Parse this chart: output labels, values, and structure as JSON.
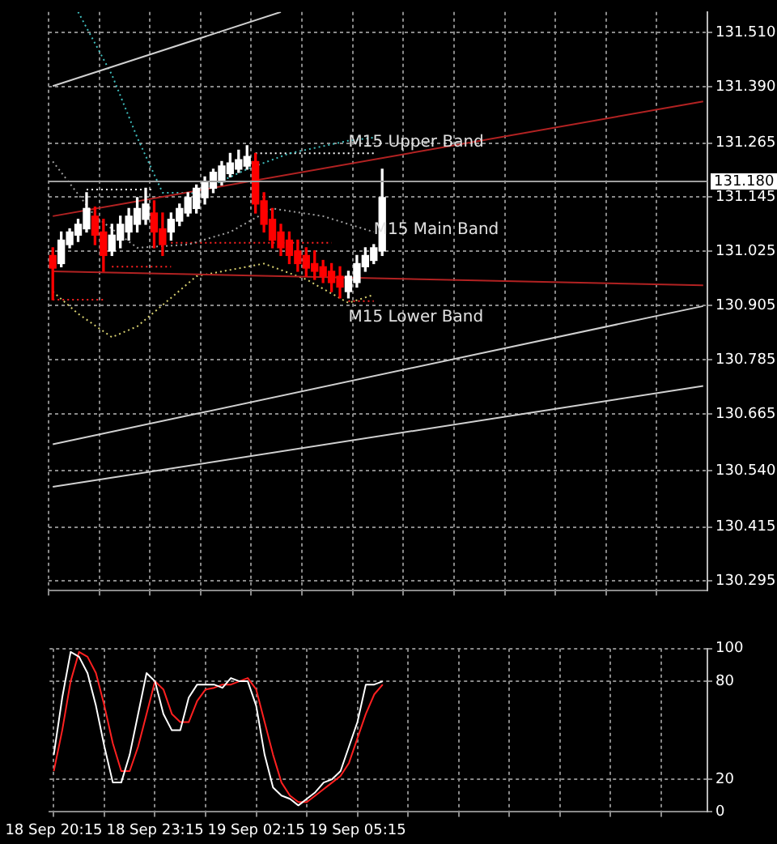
{
  "chart_data": [
    {
      "type": "candlestick",
      "tick_labels": "y",
      "grid": true,
      "categories": [
        null,
        null,
        null,
        null,
        null,
        null,
        null,
        null,
        null,
        null,
        null,
        null,
        null,
        null,
        null,
        null,
        null,
        null,
        null,
        null,
        null,
        null,
        null,
        null,
        null,
        null,
        null,
        null,
        null,
        null,
        null,
        null,
        null,
        null,
        null,
        null,
        null,
        null,
        null,
        null,
        null,
        null,
        null,
        null,
        null,
        null,
        null,
        null,
        null,
        null,
        null,
        null,
        null,
        null,
        null,
        null,
        null,
        null,
        null,
        null,
        null,
        null,
        null,
        null,
        null,
        null,
        null,
        null,
        null,
        null,
        null,
        null,
        null,
        null,
        null,
        null,
        null,
        null
      ],
      "ohlc": [
        [
          131.016,
          131.033,
          130.918,
          130.988
        ],
        [
          130.998,
          131.068,
          130.991,
          131.05
        ],
        [
          131.04,
          131.075,
          131.033,
          131.068
        ],
        [
          131.061,
          131.096,
          131.047,
          131.085
        ],
        [
          131.075,
          131.155,
          131.068,
          131.12
        ],
        [
          131.103,
          131.123,
          131.04,
          131.061
        ],
        [
          131.068,
          131.096,
          130.981,
          131.016
        ],
        [
          131.026,
          131.085,
          131.016,
          131.061
        ],
        [
          131.05,
          131.103,
          131.033,
          131.085
        ],
        [
          131.068,
          131.12,
          131.05,
          131.103
        ],
        [
          131.085,
          131.144,
          131.068,
          131.12
        ],
        [
          131.096,
          131.165,
          131.085,
          131.13
        ],
        [
          131.11,
          131.137,
          131.033,
          131.068
        ],
        [
          131.075,
          131.11,
          131.016,
          131.04
        ],
        [
          131.068,
          131.11,
          131.05,
          131.096
        ],
        [
          131.092,
          131.13,
          131.082,
          131.12
        ],
        [
          131.11,
          131.155,
          131.103,
          131.144
        ],
        [
          131.12,
          131.172,
          131.11,
          131.165
        ],
        [
          131.144,
          131.19,
          131.13,
          131.179
        ],
        [
          131.165,
          131.207,
          131.155,
          131.2
        ],
        [
          131.179,
          131.224,
          131.172,
          131.214
        ],
        [
          131.197,
          131.242,
          131.19,
          131.221
        ],
        [
          131.207,
          131.249,
          131.2,
          131.228
        ],
        [
          131.214,
          131.259,
          131.207,
          131.235
        ],
        [
          131.224,
          131.242,
          131.11,
          131.13
        ],
        [
          131.137,
          131.155,
          131.068,
          131.085
        ],
        [
          131.096,
          131.12,
          131.033,
          131.05
        ],
        [
          131.068,
          131.085,
          131.016,
          131.033
        ],
        [
          131.05,
          131.068,
          130.998,
          131.016
        ],
        [
          131.026,
          131.05,
          130.981,
          130.998
        ],
        [
          131.016,
          131.033,
          130.97,
          130.988
        ],
        [
          130.998,
          131.026,
          130.963,
          130.981
        ],
        [
          130.991,
          131.005,
          130.956,
          130.97
        ],
        [
          130.981,
          130.998,
          130.936,
          130.956
        ],
        [
          130.97,
          130.991,
          130.922,
          130.946
        ],
        [
          130.936,
          130.981,
          130.922,
          130.97
        ],
        [
          130.956,
          131.016,
          130.946,
          130.998
        ],
        [
          130.991,
          131.033,
          130.981,
          131.016
        ],
        [
          131.005,
          131.04,
          130.998,
          131.033
        ],
        [
          131.026,
          131.207,
          131.016,
          131.144
        ],
        null,
        null,
        null,
        null,
        null,
        null,
        null,
        null,
        null,
        null,
        null,
        null,
        null,
        null,
        null,
        null,
        null,
        null,
        null,
        null,
        null,
        null,
        null,
        null,
        null,
        null,
        null,
        null,
        null,
        null,
        null,
        null,
        null,
        null,
        null,
        null,
        null,
        null
      ],
      "colors": [
        "#ff0000",
        "#ffffff",
        "#ffffff",
        "#ffffff",
        "#ffffff",
        "#ff0000",
        "#ff0000",
        "#ffffff",
        "#ffffff",
        "#ffffff",
        "#ffffff",
        "#ffffff",
        "#ff0000",
        "#ff0000",
        "#ffffff",
        "#ffffff",
        "#ffffff",
        "#ffffff",
        "#ffffff",
        "#ffffff",
        "#ffffff",
        "#ffffff",
        "#ffffff",
        "#ffffff",
        "#ff0000",
        "#ff0000",
        "#ff0000",
        "#ff0000",
        "#ff0000",
        "#ff0000",
        "#ff0000",
        "#ff0000",
        "#ff0000",
        "#ff0000",
        "#ff0000",
        "#ffffff",
        "#ffffff",
        "#ffffff",
        "#ffffff",
        "#ffffff",
        null,
        null,
        null,
        null,
        null,
        null,
        null,
        null,
        null,
        null,
        null,
        null,
        null,
        null,
        null,
        null,
        null,
        null,
        null,
        null,
        null,
        null,
        null,
        null,
        null,
        null,
        null,
        null,
        null,
        null,
        null,
        null,
        null,
        null,
        null,
        null,
        null,
        null
      ],
      "series": [
        {
          "type": "line",
          "color": "#b22222",
          "line_style": "solid",
          "values": [
            131.103,
            null,
            null,
            null,
            null,
            null,
            null,
            null,
            null,
            null,
            null,
            null,
            null,
            null,
            null,
            null,
            null,
            null,
            null,
            null,
            null,
            null,
            null,
            null,
            null,
            null,
            null,
            null,
            null,
            null,
            null,
            null,
            null,
            null,
            null,
            null,
            null,
            null,
            null,
            null,
            null,
            null,
            null,
            null,
            null,
            null,
            null,
            null,
            null,
            null,
            null,
            null,
            null,
            null,
            null,
            null,
            null,
            null,
            null,
            null,
            null,
            null,
            null,
            null,
            null,
            null,
            null,
            null,
            null,
            null,
            null,
            null,
            null,
            null,
            null,
            null,
            null,
            131.357
          ]
        },
        {
          "type": "line",
          "color": "#b22222",
          "line_style": "solid",
          "values": [
            130.981,
            null,
            null,
            null,
            null,
            null,
            null,
            null,
            null,
            null,
            null,
            null,
            null,
            null,
            null,
            null,
            null,
            null,
            null,
            null,
            null,
            null,
            null,
            null,
            null,
            null,
            null,
            null,
            null,
            null,
            null,
            null,
            null,
            null,
            null,
            null,
            null,
            null,
            null,
            null,
            null,
            null,
            null,
            null,
            null,
            null,
            null,
            null,
            null,
            null,
            null,
            null,
            null,
            null,
            null,
            null,
            null,
            null,
            null,
            null,
            null,
            null,
            null,
            null,
            null,
            null,
            null,
            null,
            null,
            null,
            null,
            null,
            null,
            null,
            null,
            null,
            null,
            130.95
          ]
        },
        {
          "type": "line",
          "color": "#d0d0d0",
          "line_style": "solid",
          "values": [
            131.391,
            null,
            null,
            null,
            null,
            null,
            null,
            null,
            null,
            null,
            null,
            null,
            null,
            null,
            null,
            null,
            null,
            null,
            null,
            null,
            null,
            null,
            null,
            null,
            null,
            null,
            null,
            131.555,
            null,
            null,
            null,
            null,
            null,
            null,
            null,
            null,
            null,
            null,
            null,
            null,
            null,
            null,
            null,
            null,
            null,
            null,
            null,
            null,
            null,
            null,
            null,
            null,
            null,
            null,
            null,
            null,
            null,
            null,
            null,
            null,
            null,
            null,
            null,
            null,
            null,
            null,
            null,
            null,
            null,
            null,
            null,
            null,
            null,
            null,
            null,
            null,
            null,
            null
          ]
        },
        {
          "type": "line",
          "color": "#d0d0d0",
          "line_style": "solid",
          "values": [
            130.598,
            null,
            null,
            null,
            null,
            null,
            null,
            null,
            null,
            null,
            null,
            null,
            null,
            null,
            null,
            null,
            null,
            null,
            null,
            null,
            null,
            null,
            null,
            null,
            null,
            null,
            null,
            null,
            null,
            null,
            null,
            null,
            null,
            null,
            null,
            null,
            null,
            null,
            null,
            null,
            null,
            null,
            null,
            null,
            null,
            null,
            null,
            null,
            null,
            null,
            null,
            null,
            null,
            null,
            null,
            null,
            null,
            null,
            null,
            null,
            null,
            null,
            null,
            null,
            null,
            null,
            null,
            null,
            null,
            null,
            null,
            null,
            null,
            null,
            null,
            null,
            null,
            130.904
          ]
        },
        {
          "type": "line",
          "color": "#d0d0d0",
          "line_style": "solid",
          "values": [
            130.504,
            null,
            null,
            null,
            null,
            null,
            null,
            null,
            null,
            null,
            null,
            null,
            null,
            null,
            null,
            null,
            null,
            null,
            null,
            null,
            null,
            null,
            null,
            null,
            null,
            null,
            null,
            null,
            null,
            null,
            null,
            null,
            null,
            null,
            null,
            null,
            null,
            null,
            null,
            null,
            null,
            null,
            null,
            null,
            null,
            null,
            null,
            null,
            null,
            null,
            null,
            null,
            null,
            null,
            null,
            null,
            null,
            null,
            null,
            null,
            null,
            null,
            null,
            null,
            null,
            null,
            null,
            null,
            null,
            null,
            null,
            null,
            null,
            null,
            null,
            null,
            null,
            130.727
          ]
        },
        {
          "type": "line",
          "color": "#40c0c0",
          "line_style": "dotted",
          "values": [
            null,
            null,
            null,
            131.555,
            null,
            null,
            null,
            131.416,
            null,
            null,
            131.277,
            null,
            null,
            131.155,
            null,
            null,
            null,
            131.155,
            null,
            null,
            null,
            null,
            null,
            131.207,
            null,
            null,
            null,
            null,
            131.242,
            null,
            null,
            null,
            null,
            null,
            null,
            131.27,
            null,
            null,
            131.277,
            null,
            null,
            null,
            null,
            null,
            null,
            null,
            null,
            null,
            null,
            null,
            null,
            null,
            null,
            null,
            null,
            null,
            null,
            null,
            null,
            null,
            null,
            null,
            null,
            null,
            null,
            null,
            null,
            null,
            null,
            null,
            null,
            null,
            null,
            null,
            null,
            null,
            null,
            null
          ]
        },
        {
          "type": "line",
          "color": "#a0a0a0",
          "line_style": "dotted",
          "values": [
            131.224,
            null,
            null,
            null,
            null,
            131.103,
            null,
            null,
            null,
            null,
            131.033,
            null,
            null,
            null,
            null,
            null,
            131.04,
            null,
            null,
            null,
            null,
            131.068,
            null,
            null,
            null,
            null,
            131.12,
            null,
            null,
            null,
            null,
            null,
            131.103,
            null,
            null,
            null,
            null,
            null,
            131.068,
            null,
            null,
            null,
            null,
            null,
            null,
            null,
            null,
            null,
            null,
            null,
            null,
            null,
            null,
            null,
            null,
            null,
            null,
            null,
            null,
            null,
            null,
            null,
            null,
            null,
            null,
            null,
            null,
            null,
            null,
            null,
            null,
            null,
            null,
            null,
            null,
            null,
            null,
            null
          ]
        },
        {
          "type": "line",
          "color": "#d8d070",
          "line_style": "dotted",
          "values": [
            130.936,
            null,
            null,
            130.887,
            null,
            null,
            null,
            130.835,
            null,
            null,
            130.859,
            null,
            null,
            null,
            130.922,
            null,
            null,
            130.97,
            null,
            null,
            null,
            null,
            null,
            null,
            null,
            130.998,
            null,
            null,
            null,
            null,
            130.963,
            null,
            null,
            null,
            null,
            130.911,
            null,
            null,
            130.929,
            null,
            null,
            null,
            null,
            null,
            null,
            null,
            null,
            null,
            null,
            null,
            null,
            null,
            null,
            null,
            null,
            null,
            null,
            null,
            null,
            null,
            null,
            null,
            null,
            null,
            null,
            null,
            null,
            null,
            null,
            null,
            null,
            null,
            null,
            null,
            null,
            null,
            null,
            null
          ]
        },
        {
          "type": "line",
          "color": "#ffffff",
          "line_style": "dotted",
          "values": [
            null,
            null,
            null,
            null,
            131.162,
            131.162,
            131.162,
            131.162,
            131.162,
            131.162,
            131.162,
            131.162,
            131.162,
            null,
            null,
            null,
            null,
            null,
            null,
            null,
            null,
            null,
            null,
            null,
            null,
            null,
            null,
            null,
            null,
            null,
            null,
            null,
            null,
            null,
            null,
            null,
            null,
            null,
            null,
            null,
            null,
            null,
            null,
            null,
            null,
            null,
            null,
            null,
            null,
            null,
            null,
            null,
            null,
            null,
            null,
            null,
            null,
            null,
            null,
            null,
            null,
            null,
            null,
            null,
            null,
            null,
            null,
            null,
            null,
            null,
            null,
            null,
            null,
            null,
            null,
            null,
            null,
            null
          ]
        },
        {
          "type": "line",
          "color": "#ffffff",
          "line_style": "dotted",
          "values": [
            null,
            null,
            null,
            null,
            null,
            null,
            null,
            null,
            null,
            null,
            null,
            null,
            null,
            null,
            null,
            null,
            null,
            null,
            null,
            null,
            null,
            null,
            null,
            null,
            131.242,
            131.242,
            131.242,
            131.242,
            131.242,
            131.242,
            131.242,
            131.242,
            131.242,
            131.242,
            131.242,
            131.242,
            131.242,
            131.242,
            131.242,
            null,
            null,
            null,
            null,
            null,
            null,
            null,
            null,
            null,
            null,
            null,
            null,
            null,
            null,
            null,
            null,
            null,
            null,
            null,
            null,
            null,
            null,
            null,
            null,
            null,
            null,
            null,
            null,
            null,
            null,
            null,
            null,
            null,
            null,
            null,
            null,
            null,
            null,
            null
          ]
        },
        {
          "type": "line",
          "color": "#ff2020",
          "line_style": "dotted",
          "values": [
            130.918,
            130.918,
            130.918,
            130.918,
            130.918,
            130.918,
            130.918,
            null,
            null,
            null,
            null,
            null,
            null,
            null,
            null,
            null,
            null,
            null,
            null,
            null,
            null,
            null,
            null,
            null,
            null,
            null,
            null,
            null,
            null,
            null,
            null,
            null,
            null,
            null,
            null,
            null,
            null,
            null,
            null,
            null,
            null,
            null,
            null,
            null,
            null,
            null,
            null,
            null,
            null,
            null,
            null,
            null,
            null,
            null,
            null,
            null,
            null,
            null,
            null,
            null,
            null,
            null,
            null,
            null,
            null,
            null,
            null,
            null,
            null,
            null,
            null,
            null,
            null,
            null,
            null,
            null,
            null,
            null
          ]
        },
        {
          "type": "line",
          "color": "#ff2020",
          "line_style": "dotted",
          "values": [
            null,
            null,
            null,
            null,
            null,
            null,
            null,
            130.991,
            130.991,
            130.991,
            130.991,
            130.991,
            130.991,
            130.991,
            130.991,
            null,
            null,
            null,
            null,
            null,
            null,
            null,
            null,
            null,
            null,
            null,
            null,
            null,
            null,
            null,
            null,
            null,
            null,
            null,
            null,
            null,
            null,
            null,
            null,
            null,
            null,
            null,
            null,
            null,
            null,
            null,
            null,
            null,
            null,
            null,
            null,
            null,
            null,
            null,
            null,
            null,
            null,
            null,
            null,
            null,
            null,
            null,
            null,
            null,
            null,
            null,
            null,
            null,
            null,
            null,
            null,
            null,
            null,
            null,
            null,
            null,
            null,
            null
          ]
        },
        {
          "type": "line",
          "color": "#ff2020",
          "line_style": "dotted",
          "values": [
            null,
            null,
            null,
            null,
            null,
            null,
            null,
            null,
            null,
            null,
            null,
            null,
            null,
            null,
            131.044,
            131.044,
            131.044,
            131.044,
            131.044,
            131.044,
            131.044,
            131.044,
            131.044,
            131.044,
            131.044,
            131.044,
            131.044,
            131.044,
            131.044,
            131.044,
            131.044,
            131.044,
            131.044,
            131.044,
            null,
            null,
            null,
            null,
            null,
            null,
            null,
            null,
            null,
            null,
            null,
            null,
            null,
            null,
            null,
            null,
            null,
            null,
            null,
            null,
            null,
            null,
            null,
            null,
            null,
            null,
            null,
            null,
            null,
            null,
            null,
            null,
            null,
            null,
            null,
            null,
            null,
            null,
            null,
            null,
            null,
            null,
            null,
            null
          ]
        },
        {
          "type": "line",
          "color": "#ff2020",
          "line_style": "dotted",
          "values": [
            null,
            null,
            null,
            null,
            null,
            null,
            null,
            null,
            null,
            null,
            null,
            null,
            null,
            null,
            null,
            null,
            null,
            null,
            null,
            null,
            null,
            null,
            null,
            null,
            null,
            null,
            null,
            null,
            null,
            null,
            null,
            null,
            null,
            null,
            null,
            130.915,
            130.915,
            130.915,
            130.915,
            null,
            null,
            null,
            null,
            null,
            null,
            null,
            null,
            null,
            null,
            null,
            null,
            null,
            null,
            null,
            null,
            null,
            null,
            null,
            null,
            null,
            null,
            null,
            null,
            null,
            null,
            null,
            null,
            null,
            null,
            null,
            null,
            null,
            null,
            null,
            null,
            null,
            null,
            null
          ]
        }
      ],
      "ylim": [
        130.274,
        131.555
      ],
      "yticks": [
        {
          "value": 131.51,
          "label": "131.510"
        },
        {
          "value": 131.39,
          "label": "131.390"
        },
        {
          "value": 131.265,
          "label": "131.265"
        },
        {
          "value": 131.145,
          "label": "131.145"
        },
        {
          "value": 131.025,
          "label": "131.025"
        },
        {
          "value": 130.905,
          "label": "130.905"
        },
        {
          "value": 130.785,
          "label": "130.785"
        },
        {
          "value": 130.665,
          "label": "130.665"
        },
        {
          "value": 130.54,
          "label": "130.540"
        },
        {
          "value": 130.415,
          "label": "130.415"
        },
        {
          "value": 130.295,
          "label": "130.295"
        }
      ],
      "ref_lines": [
        {
          "axis": "y",
          "value": 131.18,
          "label": "131.180",
          "color": "#a0a0a0"
        }
      ],
      "annotations": [
        "M15 Upper Band",
        "M15 Main Band",
        "M15 Lower Band"
      ]
    },
    {
      "type": "line",
      "grid": true,
      "marker": "none",
      "categories": [
        "18 Sep 20:15",
        null,
        null,
        null,
        null,
        null,
        null,
        null,
        null,
        null,
        null,
        null,
        "18 Sep 23:15",
        null,
        null,
        null,
        null,
        null,
        null,
        null,
        null,
        null,
        null,
        null,
        "19 Sep 02:15",
        null,
        null,
        null,
        null,
        null,
        null,
        null,
        null,
        null,
        null,
        null,
        "19 Sep 05:15",
        null,
        null,
        null,
        null,
        null,
        null,
        null,
        null,
        null,
        null,
        null,
        null,
        null,
        null,
        null,
        null,
        null,
        null,
        null,
        null,
        null,
        null,
        null,
        null,
        null,
        null,
        null,
        null,
        null,
        null,
        null,
        null,
        null,
        null,
        null,
        null,
        null,
        null,
        null,
        null,
        null
      ],
      "series": [
        {
          "color": "#ffffff",
          "values": [
            35,
            70,
            98,
            95,
            85,
            65,
            40,
            18,
            18,
            35,
            60,
            85,
            80,
            60,
            50,
            50,
            70,
            78,
            78,
            78,
            76,
            82,
            80,
            80,
            65,
            35,
            15,
            10,
            8,
            4,
            8,
            12,
            18,
            20,
            25,
            40,
            55,
            78,
            78,
            80,
            null,
            null,
            null,
            null,
            null,
            null,
            null,
            null,
            null,
            null,
            null,
            null,
            null,
            null,
            null,
            null,
            null,
            null,
            null,
            null,
            null,
            null,
            null,
            null,
            null,
            null,
            null,
            null,
            null,
            null,
            null,
            null,
            null,
            null,
            null,
            null,
            null,
            null
          ]
        },
        {
          "color": "#ff2020",
          "values": [
            25,
            50,
            80,
            98,
            95,
            85,
            65,
            42,
            25,
            25,
            40,
            60,
            80,
            75,
            60,
            55,
            55,
            68,
            75,
            76,
            78,
            78,
            80,
            82,
            75,
            55,
            35,
            18,
            10,
            6,
            6,
            10,
            14,
            18,
            22,
            30,
            45,
            60,
            72,
            78,
            null,
            null,
            null,
            null,
            null,
            null,
            null,
            null,
            null,
            null,
            null,
            null,
            null,
            null,
            null,
            null,
            null,
            null,
            null,
            null,
            null,
            null,
            null,
            null,
            null,
            null,
            null,
            null,
            null,
            null,
            null,
            null,
            null,
            null,
            null,
            null,
            null,
            null
          ]
        }
      ],
      "ylim": [
        0,
        100
      ],
      "yticks": [
        0,
        20,
        80,
        100
      ]
    }
  ]
}
